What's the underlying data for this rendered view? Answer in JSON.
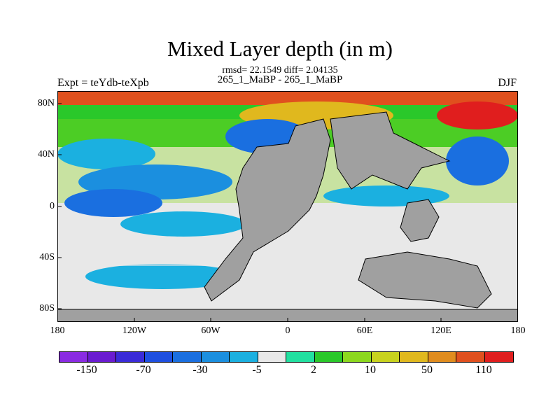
{
  "title": "Mixed Layer depth (in m)",
  "subtitle_stats": "rmsd= 22.1549 diff= 2.04135",
  "subtitle_runs": "265_1_MaBP - 265_1_MaBP",
  "experiment_label": "Expt = teYdb-teXpb",
  "season_label": "DJF",
  "lat_ticks": [
    "80N",
    "40N",
    "0",
    "40S",
    "80S"
  ],
  "lon_ticks": [
    "180",
    "120W",
    "60W",
    "0",
    "60E",
    "120E",
    "180"
  ],
  "colorbar": {
    "colors": [
      "#8a2be2",
      "#6a1bd0",
      "#3a2bd8",
      "#1e4fe0",
      "#1a6fe0",
      "#1b8fdf",
      "#1bb0e0",
      "#e8e8e8",
      "#22e0a0",
      "#2ac82a",
      "#8cd81e",
      "#c8d21e",
      "#e0b81e",
      "#e08c1e",
      "#e0501e",
      "#e01e1e"
    ],
    "labels": [
      "-150",
      "-70",
      "-30",
      "-5",
      "2",
      "10",
      "50",
      "110"
    ]
  },
  "chart_data": {
    "type": "heatmap",
    "title": "Mixed Layer depth (in m)",
    "xlabel": "",
    "ylabel": "",
    "xlim": [
      -180,
      180
    ],
    "ylim": [
      -90,
      90
    ],
    "color_levels": [
      -150,
      -70,
      -30,
      -5,
      2,
      10,
      50,
      110
    ]
  }
}
